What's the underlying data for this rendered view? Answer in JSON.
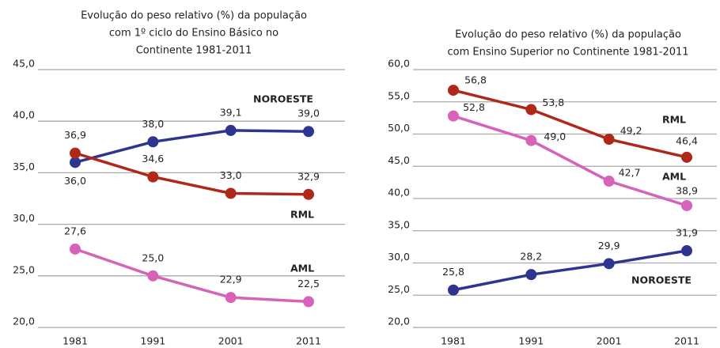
{
  "chart_data": [
    {
      "type": "line",
      "title": [
        "Evolução do peso relativo (%) da população",
        "com 1º ciclo do Ensino Básico  no",
        "Continente 1981-2011"
      ],
      "categories": [
        "1981",
        "1991",
        "2001",
        "2011"
      ],
      "ylim": [
        20,
        45
      ],
      "yticks": [
        {
          "value": 20,
          "label": "20,0"
        },
        {
          "value": 25,
          "label": "25,0"
        },
        {
          "value": 30,
          "label": "30,0"
        },
        {
          "value": 35,
          "label": "35,0"
        },
        {
          "value": 40,
          "label": "40,0"
        },
        {
          "value": 45,
          "label": "45,0"
        }
      ],
      "grid": true,
      "series": [
        {
          "name": "NOROESTE",
          "color": "#2e3590",
          "values": [
            36.0,
            38.0,
            39.1,
            39.0
          ],
          "value_labels": [
            "36,0",
            "38,0",
            "39,1",
            "39,0"
          ]
        },
        {
          "name": "RML",
          "color": "#b0281a",
          "values": [
            36.9,
            34.6,
            33.0,
            32.9
          ],
          "value_labels": [
            "36,9",
            "34,6",
            "33,0",
            "32,9"
          ]
        },
        {
          "name": "AML",
          "color": "#d763b9",
          "values": [
            27.6,
            25.0,
            22.9,
            22.5
          ],
          "value_labels": [
            "27,6",
            "25,0",
            "22,9",
            "22,5"
          ]
        }
      ]
    },
    {
      "type": "line",
      "title": [
        "Evolução do peso relativo (%) da população",
        "com Ensino Superior  no Continente 1981-2011"
      ],
      "categories": [
        "1981",
        "1991",
        "2001",
        "2011"
      ],
      "ylim": [
        20,
        60
      ],
      "yticks": [
        {
          "value": 20,
          "label": "20,0"
        },
        {
          "value": 25,
          "label": "25,0"
        },
        {
          "value": 30,
          "label": "30,0"
        },
        {
          "value": 35,
          "label": "35,0"
        },
        {
          "value": 40,
          "label": "40,0"
        },
        {
          "value": 45,
          "label": "45,0"
        },
        {
          "value": 50,
          "label": "50,0"
        },
        {
          "value": 55,
          "label": "55,0"
        },
        {
          "value": 60,
          "label": "60,0"
        }
      ],
      "grid": true,
      "series": [
        {
          "name": "RML",
          "color": "#b0281a",
          "values": [
            56.8,
            53.8,
            49.2,
            46.4
          ],
          "value_labels": [
            "56,8",
            "53,8",
            "49,2",
            "46,4"
          ]
        },
        {
          "name": "AML",
          "color": "#d763b9",
          "values": [
            52.8,
            49.0,
            42.7,
            38.9
          ],
          "value_labels": [
            "52,8",
            "49,0",
            "42,7",
            "38,9"
          ]
        },
        {
          "name": "NOROESTE",
          "color": "#2e3590",
          "values": [
            25.8,
            28.2,
            29.9,
            31.9
          ],
          "value_labels": [
            "25,8",
            "28,2",
            "29,9",
            "31,9"
          ]
        }
      ]
    }
  ]
}
